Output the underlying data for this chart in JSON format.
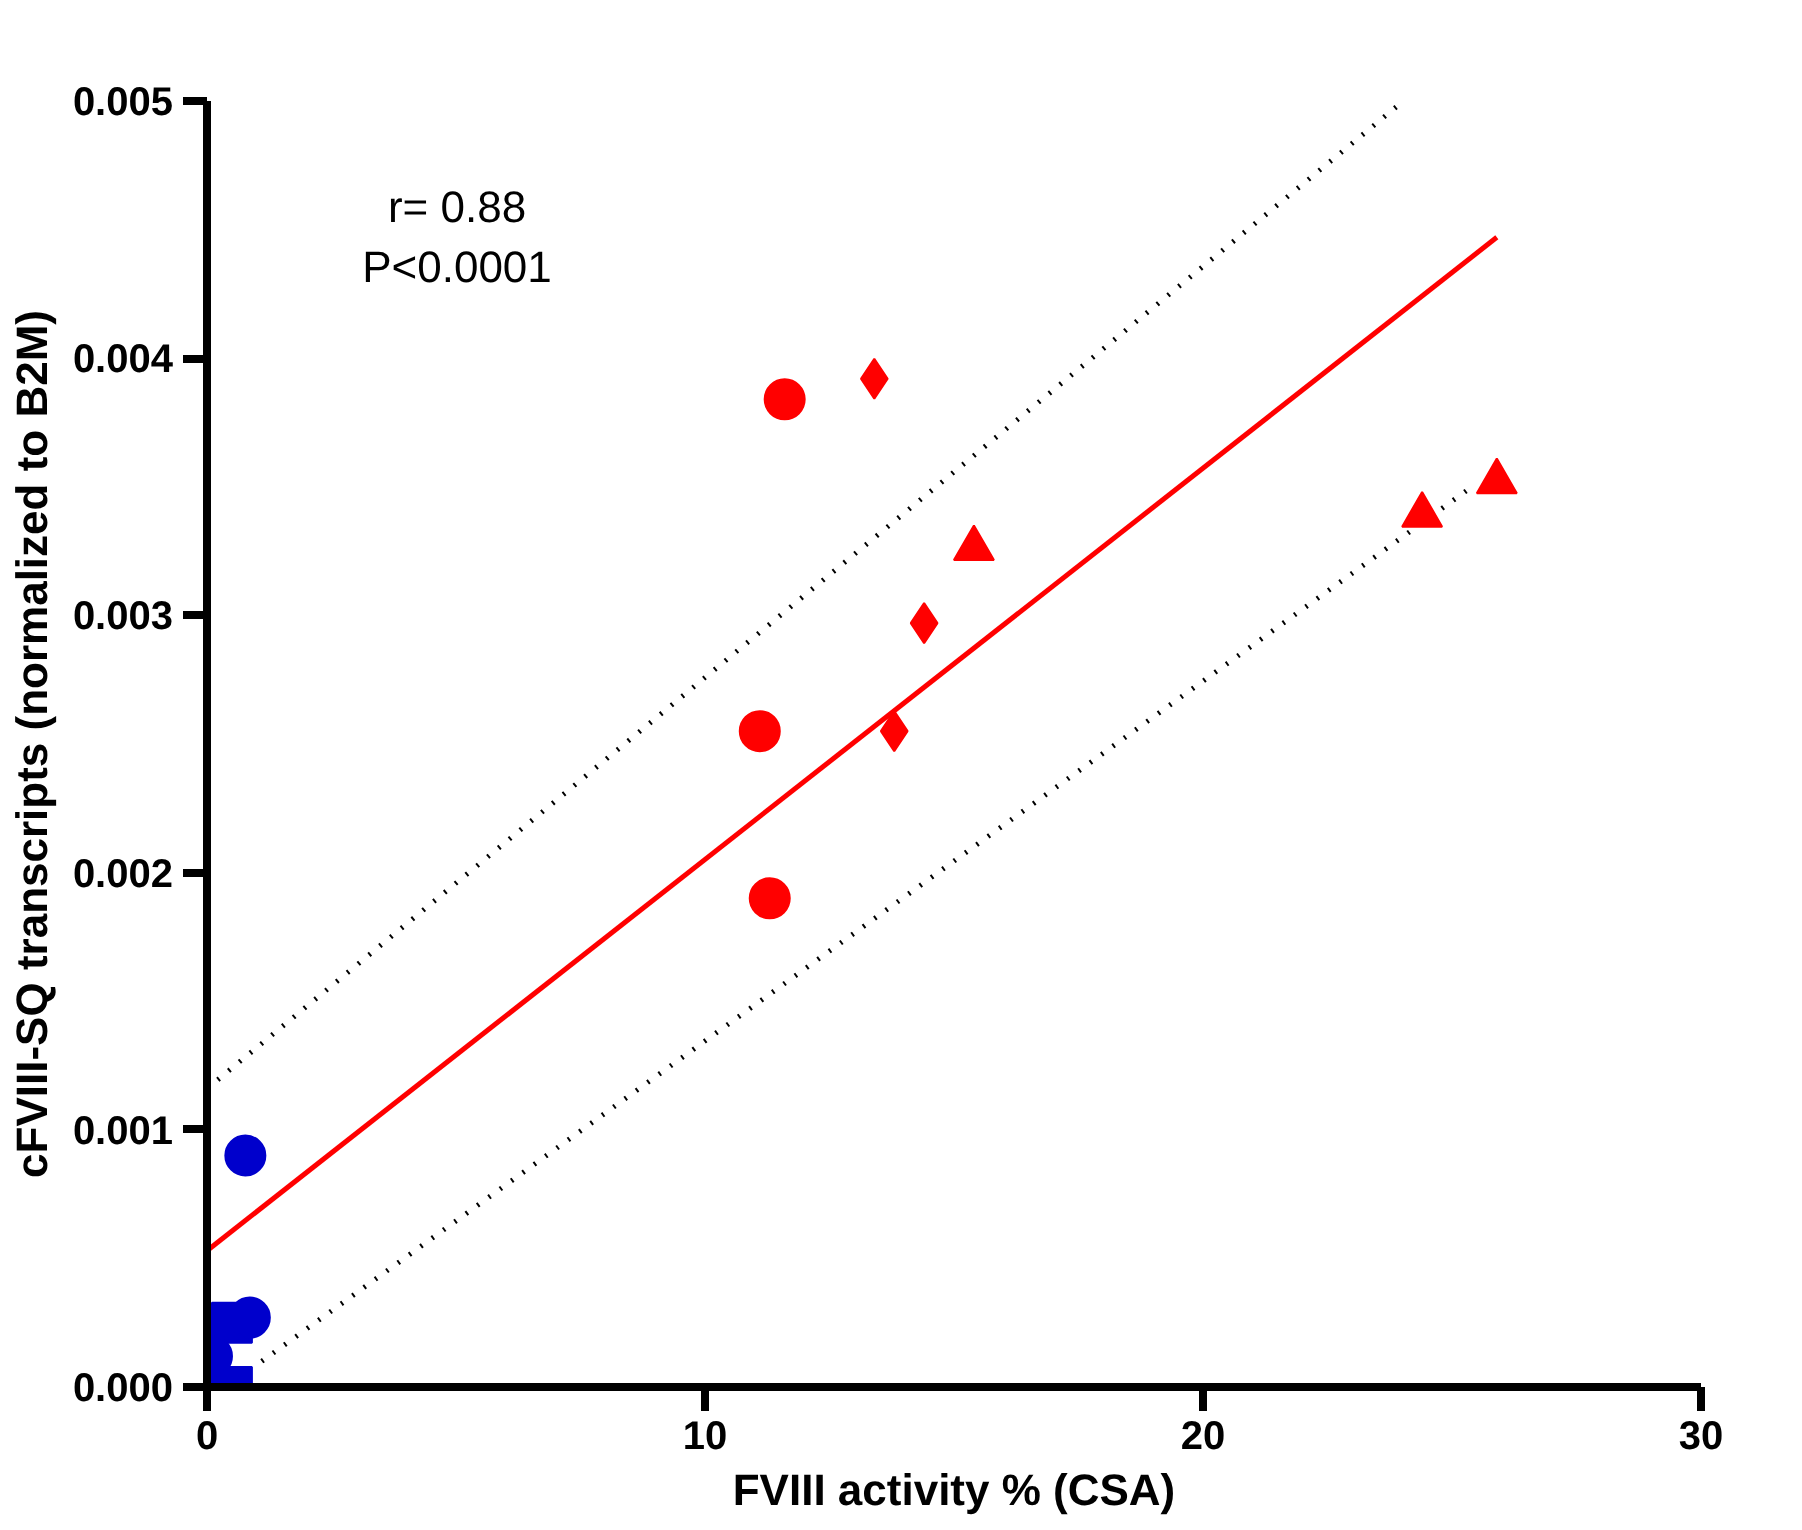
{
  "chart_data": {
    "type": "scatter",
    "xlabel": "FVIII activity % (CSA)",
    "ylabel": "cFVIII-SQ transcripts (normalized to B2M)",
    "xlim": [
      0,
      30
    ],
    "ylim": [
      0,
      0.005
    ],
    "xticks": [
      0,
      10,
      20,
      30
    ],
    "yticks": [
      {
        "value": 0,
        "label": "0.000"
      },
      {
        "value": 0.001,
        "label": "0.001"
      },
      {
        "value": 0.002,
        "label": "0.002"
      },
      {
        "value": 0.003,
        "label": "0.003"
      },
      {
        "value": 0.004,
        "label": "0.004"
      },
      {
        "value": 0.005,
        "label": "0.005"
      }
    ],
    "grid": false,
    "annotations": [
      "r= 0.88",
      "P<0.0001"
    ],
    "series": [
      {
        "marker": "circle",
        "color": "#ff0000",
        "x": [
          11.6,
          11.1,
          11.3
        ],
        "values": [
          0.00384,
          0.00255,
          0.0019
        ]
      },
      {
        "marker": "diamond",
        "color": "#ff0000",
        "x": [
          13.4,
          14.4,
          13.8
        ],
        "values": [
          0.00392,
          0.00297,
          0.00255
        ]
      },
      {
        "marker": "triangle",
        "color": "#ff0000",
        "x": [
          15.4,
          24.4,
          25.9
        ],
        "values": [
          0.00326,
          0.00339,
          0.00352
        ]
      },
      {
        "marker": "square",
        "color": "#0000cc",
        "x": [
          0.5,
          0.5
        ],
        "values": [
          0.00025,
          0.0
        ]
      },
      {
        "marker": "circle",
        "color": "#0000cc",
        "x": [
          0.77,
          0.86,
          0.1
        ],
        "values": [
          0.0009,
          0.00027,
          0.00012
        ]
      },
      {
        "type": "line",
        "line_style": "solid",
        "color": "#ff0000",
        "x": [
          0,
          25.9
        ],
        "values": [
          0.00053,
          0.00447
        ]
      },
      {
        "type": "line",
        "line_style": "dotted",
        "color": "#000000",
        "x": [
          0,
          23.9
        ],
        "values": [
          0.00116,
          0.00498
        ]
      },
      {
        "type": "line",
        "line_style": "dotted",
        "color": "#000000",
        "x": [
          1.1,
          25.4
        ],
        "values": [
          0.0001,
          0.0035
        ]
      }
    ]
  }
}
